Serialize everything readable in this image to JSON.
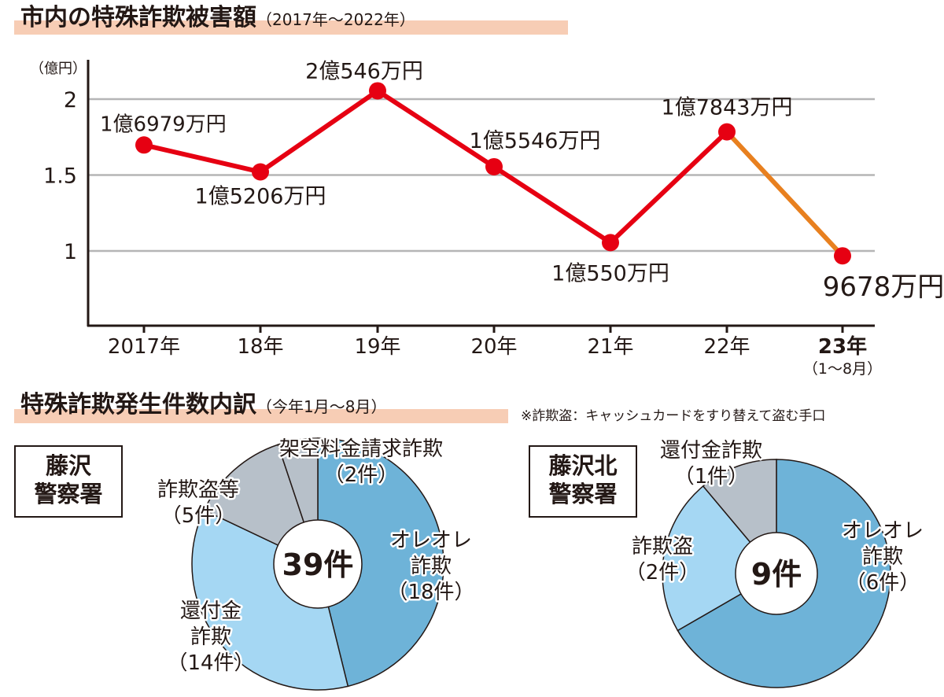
{
  "title1": {
    "main": "市内の特殊詐欺被害額",
    "sub": "（2017年〜2022年）"
  },
  "title2": {
    "main": "特殊詐欺発生件数内訳",
    "sub": "（今年1月〜8月）"
  },
  "note": "※詐欺盗：キャッシュカードをすり替えて盗む手口",
  "colors": {
    "line": "#e60012",
    "line_last": "#e8801f",
    "grid": "#b5b5b6",
    "slice_dark": "#6eb3d8",
    "slice_light": "#a5d7f3",
    "slice_gray": "#b7c0c9",
    "title_bar": "#f7cdb5"
  },
  "chart_data": [
    {
      "type": "line",
      "title": "市内の特殊詐欺被害額",
      "subtitle": "（2017年〜2022年）",
      "ylabel": "（億円）",
      "ylim": [
        0.5,
        2.2
      ],
      "yticks": [
        "1",
        "1.5",
        "2"
      ],
      "grid": true,
      "x": [
        "2017年",
        "18年",
        "19年",
        "20年",
        "21年",
        "22年",
        "23年"
      ],
      "x_sublabels": [
        "",
        "",
        "",
        "",
        "",
        "",
        "（1〜8月）"
      ],
      "series": [
        {
          "values": [
            1.6979,
            1.5206,
            2.0546,
            1.5546,
            1.055,
            1.7843,
            0.9678
          ],
          "labels": [
            "1億6979万円",
            "1億5206万円",
            "2億546万円",
            "1億5546万円",
            "1億550万円",
            "1億7843万円",
            "9678万円"
          ]
        }
      ]
    },
    {
      "type": "pie",
      "box_label": [
        "藤沢",
        "警察署"
      ],
      "total_label": "39件",
      "slices": [
        {
          "label": "オレオレ詐欺",
          "label_lines": [
            "オレオレ",
            "詐欺",
            "（18件）"
          ],
          "value": 18
        },
        {
          "label": "還付金詐欺",
          "label_lines": [
            "還付金",
            "詐欺",
            "（14件）"
          ],
          "value": 14
        },
        {
          "label": "詐欺盗等",
          "label_lines": [
            "詐欺盗等",
            "（5件）"
          ],
          "value": 5
        },
        {
          "label": "架空料金請求詐欺",
          "label_lines": [
            "架空料金請求詐欺",
            "（2件）"
          ],
          "value": 2
        }
      ]
    },
    {
      "type": "pie",
      "box_label": [
        "藤沢北",
        "警察署"
      ],
      "total_label": "9件",
      "slices": [
        {
          "label": "オレオレ詐欺",
          "label_lines": [
            "オレオレ",
            "詐欺",
            "（6件）"
          ],
          "value": 6
        },
        {
          "label": "詐欺盗",
          "label_lines": [
            "詐欺盗",
            "（2件）"
          ],
          "value": 2
        },
        {
          "label": "還付金詐欺",
          "label_lines": [
            "還付金詐欺",
            "（1件）"
          ],
          "value": 1
        }
      ]
    }
  ]
}
